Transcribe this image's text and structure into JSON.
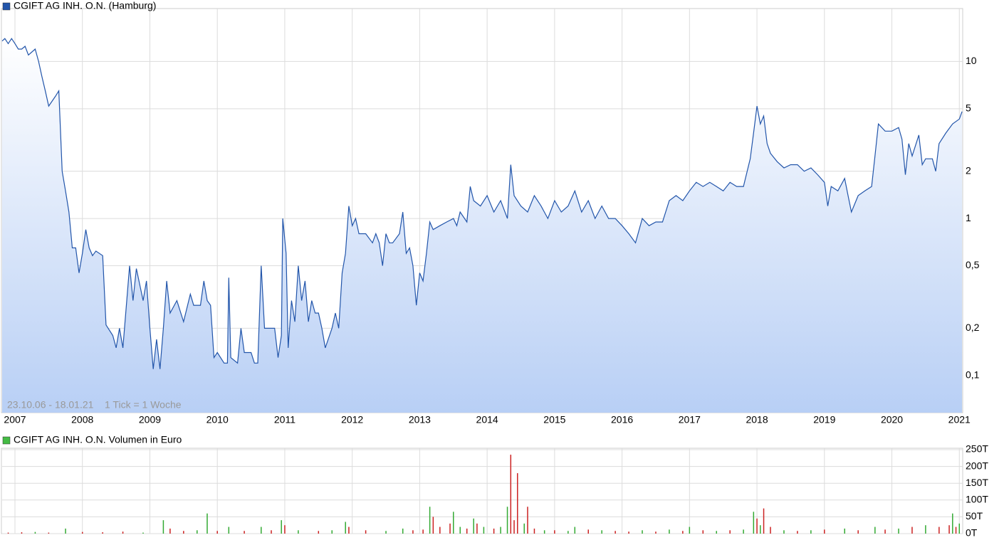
{
  "chart_data": [
    {
      "type": "line",
      "log_scale": true,
      "grid": true,
      "annotations": [
        "23.10.06 - 18.01.21",
        "1 Tick = 1 Woche"
      ],
      "x": [
        2006.81,
        2006.85,
        2006.9,
        2006.95,
        2007.0,
        2007.05,
        2007.1,
        2007.15,
        2007.2,
        2007.3,
        2007.35,
        2007.4,
        2007.45,
        2007.5,
        2007.6,
        2007.65,
        2007.7,
        2007.75,
        2007.8,
        2007.85,
        2007.9,
        2007.95,
        2008.0,
        2008.05,
        2008.1,
        2008.15,
        2008.2,
        2008.3,
        2008.35,
        2008.45,
        2008.5,
        2008.55,
        2008.6,
        2008.7,
        2008.75,
        2008.8,
        2008.9,
        2008.95,
        2009.0,
        2009.05,
        2009.1,
        2009.15,
        2009.2,
        2009.25,
        2009.3,
        2009.4,
        2009.5,
        2009.6,
        2009.65,
        2009.75,
        2009.8,
        2009.85,
        2009.9,
        2009.95,
        2010.0,
        2010.1,
        2010.15,
        2010.17,
        2010.2,
        2010.3,
        2010.35,
        2010.4,
        2010.5,
        2010.55,
        2010.6,
        2010.65,
        2010.7,
        2010.85,
        2010.9,
        2010.95,
        2010.97,
        2011.02,
        2011.05,
        2011.1,
        2011.15,
        2011.2,
        2011.25,
        2011.3,
        2011.35,
        2011.4,
        2011.45,
        2011.5,
        2011.55,
        2011.6,
        2011.7,
        2011.75,
        2011.8,
        2011.85,
        2011.9,
        2011.95,
        2012.0,
        2012.05,
        2012.1,
        2012.2,
        2012.3,
        2012.35,
        2012.4,
        2012.45,
        2012.5,
        2012.55,
        2012.6,
        2012.7,
        2012.75,
        2012.8,
        2012.85,
        2012.9,
        2012.95,
        2013.0,
        2013.05,
        2013.1,
        2013.15,
        2013.2,
        2013.3,
        2013.4,
        2013.5,
        2013.55,
        2013.6,
        2013.7,
        2013.75,
        2013.8,
        2013.9,
        2014.0,
        2014.1,
        2014.2,
        2014.3,
        2014.35,
        2014.4,
        2014.5,
        2014.6,
        2014.7,
        2014.8,
        2014.9,
        2015.0,
        2015.1,
        2015.2,
        2015.3,
        2015.4,
        2015.5,
        2015.6,
        2015.7,
        2015.8,
        2015.9,
        2016.0,
        2016.1,
        2016.2,
        2016.3,
        2016.4,
        2016.5,
        2016.6,
        2016.7,
        2016.8,
        2016.9,
        2017.0,
        2017.1,
        2017.2,
        2017.3,
        2017.4,
        2017.5,
        2017.6,
        2017.7,
        2017.8,
        2017.9,
        2017.95,
        2018.0,
        2018.05,
        2018.1,
        2018.15,
        2018.2,
        2018.3,
        2018.4,
        2018.5,
        2018.6,
        2018.7,
        2018.8,
        2018.9,
        2019.0,
        2019.05,
        2019.1,
        2019.2,
        2019.3,
        2019.35,
        2019.4,
        2019.5,
        2019.6,
        2019.7,
        2019.75,
        2019.8,
        2019.9,
        2020.0,
        2020.1,
        2020.15,
        2020.2,
        2020.25,
        2020.3,
        2020.4,
        2020.45,
        2020.5,
        2020.6,
        2020.65,
        2020.7,
        2020.8,
        2020.9,
        2021.0,
        2021.04
      ],
      "series": [
        {
          "name": "CGIFT AG INH. O.N. (Hamburg)",
          "color": "#2255aa",
          "values": [
            13.5,
            14,
            13,
            14,
            13,
            12,
            12,
            12.5,
            11,
            12,
            10,
            8,
            6.5,
            5.2,
            6,
            6.5,
            2,
            1.5,
            1.1,
            0.65,
            0.65,
            0.45,
            0.6,
            0.85,
            0.65,
            0.58,
            0.62,
            0.58,
            0.21,
            0.18,
            0.15,
            0.2,
            0.15,
            0.5,
            0.3,
            0.48,
            0.3,
            0.4,
            0.2,
            0.11,
            0.17,
            0.11,
            0.2,
            0.4,
            0.25,
            0.3,
            0.22,
            0.33,
            0.28,
            0.28,
            0.4,
            0.3,
            0.28,
            0.13,
            0.14,
            0.12,
            0.12,
            0.42,
            0.13,
            0.12,
            0.2,
            0.14,
            0.14,
            0.12,
            0.12,
            0.5,
            0.2,
            0.2,
            0.13,
            0.18,
            1.0,
            0.6,
            0.15,
            0.3,
            0.22,
            0.5,
            0.3,
            0.4,
            0.22,
            0.3,
            0.25,
            0.25,
            0.2,
            0.15,
            0.2,
            0.25,
            0.2,
            0.45,
            0.6,
            1.2,
            0.9,
            1.0,
            0.8,
            0.8,
            0.7,
            0.8,
            0.7,
            0.5,
            0.8,
            0.7,
            0.7,
            0.8,
            1.1,
            0.6,
            0.65,
            0.5,
            0.28,
            0.45,
            0.4,
            0.6,
            0.95,
            0.85,
            0.9,
            0.95,
            1.0,
            0.9,
            1.1,
            0.95,
            1.6,
            1.3,
            1.2,
            1.4,
            1.1,
            1.3,
            1.0,
            2.2,
            1.4,
            1.2,
            1.1,
            1.4,
            1.2,
            1.0,
            1.3,
            1.1,
            1.2,
            1.5,
            1.1,
            1.3,
            1.0,
            1.2,
            1.0,
            1.0,
            0.9,
            0.8,
            0.7,
            1.0,
            0.9,
            0.95,
            0.95,
            1.3,
            1.4,
            1.3,
            1.5,
            1.7,
            1.6,
            1.7,
            1.6,
            1.5,
            1.7,
            1.6,
            1.6,
            2.4,
            3.5,
            5.2,
            4.0,
            4.5,
            3.0,
            2.6,
            2.3,
            2.1,
            2.2,
            2.2,
            2.0,
            2.1,
            1.9,
            1.7,
            1.2,
            1.6,
            1.5,
            1.8,
            1.4,
            1.1,
            1.4,
            1.5,
            1.6,
            2.5,
            4.0,
            3.6,
            3.6,
            3.8,
            3.2,
            1.9,
            3.0,
            2.5,
            3.4,
            2.2,
            2.4,
            2.4,
            2.0,
            3.0,
            3.5,
            4.0,
            4.3,
            4.8
          ]
        }
      ],
      "xlim": [
        2006.81,
        2021.05
      ],
      "xticks": [
        2007,
        2008,
        2009,
        2010,
        2011,
        2012,
        2013,
        2014,
        2015,
        2016,
        2017,
        2018,
        2019,
        2020,
        2021
      ],
      "ylim": [
        0.058,
        20
      ],
      "yticks": [
        {
          "value": 0.1,
          "label": "0,1"
        },
        {
          "value": 0.2,
          "label": "0,2"
        },
        {
          "value": 0.5,
          "label": "0,5"
        },
        1,
        2,
        5,
        10
      ]
    },
    {
      "type": "bar",
      "grid": true,
      "x": [
        2006.9,
        2007.1,
        2007.3,
        2007.5,
        2007.75,
        2008.0,
        2008.3,
        2008.6,
        2008.9,
        2009.2,
        2009.3,
        2009.5,
        2009.7,
        2009.85,
        2010.0,
        2010.17,
        2010.4,
        2010.65,
        2010.8,
        2010.95,
        2011.0,
        2011.2,
        2011.5,
        2011.7,
        2011.9,
        2011.95,
        2012.2,
        2012.5,
        2012.75,
        2012.9,
        2013.05,
        2013.15,
        2013.2,
        2013.3,
        2013.45,
        2013.5,
        2013.6,
        2013.7,
        2013.8,
        2013.85,
        2013.95,
        2014.1,
        2014.2,
        2014.3,
        2014.35,
        2014.4,
        2014.45,
        2014.55,
        2014.6,
        2014.7,
        2014.85,
        2015.0,
        2015.2,
        2015.3,
        2015.5,
        2015.7,
        2015.9,
        2016.1,
        2016.3,
        2016.5,
        2016.7,
        2016.9,
        2017.0,
        2017.2,
        2017.4,
        2017.6,
        2017.8,
        2017.95,
        2018.0,
        2018.05,
        2018.1,
        2018.2,
        2018.4,
        2018.6,
        2018.8,
        2019.0,
        2019.3,
        2019.5,
        2019.75,
        2019.9,
        2020.1,
        2020.3,
        2020.5,
        2020.7,
        2020.85,
        2020.9,
        2020.95,
        2021.0
      ],
      "series": [
        {
          "name": "CGIFT AG INH. O.N. Volumen in Euro",
          "color": "#44bb44",
          "values": [
            3000,
            4000,
            5000,
            3000,
            15000,
            5000,
            4000,
            6000,
            3000,
            40000,
            15000,
            8000,
            10000,
            60000,
            8000,
            20000,
            8000,
            20000,
            10000,
            40000,
            25000,
            10000,
            8000,
            10000,
            35000,
            20000,
            10000,
            8000,
            15000,
            10000,
            12000,
            80000,
            50000,
            20000,
            30000,
            65000,
            20000,
            15000,
            45000,
            30000,
            20000,
            15000,
            20000,
            80000,
            235000,
            40000,
            180000,
            30000,
            80000,
            15000,
            10000,
            10000,
            8000,
            20000,
            12000,
            10000,
            8000,
            6000,
            10000,
            6000,
            12000,
            8000,
            20000,
            10000,
            8000,
            10000,
            12000,
            65000,
            45000,
            25000,
            75000,
            20000,
            10000,
            8000,
            10000,
            12000,
            15000,
            10000,
            20000,
            12000,
            15000,
            20000,
            25000,
            20000,
            25000,
            60000,
            20000,
            30000
          ],
          "bar_colors": [
            "#cc2222",
            "#cc2222",
            "#33aa33",
            "#cc2222",
            "#33aa33",
            "#cc2222",
            "#cc2222",
            "#cc2222",
            "#33aa33",
            "#33aa33",
            "#cc2222",
            "#cc2222",
            "#33aa33",
            "#33aa33",
            "#cc2222",
            "#33aa33",
            "#cc2222",
            "#33aa33",
            "#cc2222",
            "#33aa33",
            "#cc2222",
            "#33aa33",
            "#cc2222",
            "#33aa33",
            "#33aa33",
            "#cc2222",
            "#cc2222",
            "#33aa33",
            "#33aa33",
            "#cc2222",
            "#cc2222",
            "#33aa33",
            "#cc2222",
            "#cc2222",
            "#cc2222",
            "#33aa33",
            "#33aa33",
            "#cc2222",
            "#33aa33",
            "#cc2222",
            "#33aa33",
            "#cc2222",
            "#33aa33",
            "#33aa33",
            "#cc2222",
            "#cc2222",
            "#cc2222",
            "#33aa33",
            "#cc2222",
            "#cc2222",
            "#33aa33",
            "#cc2222",
            "#33aa33",
            "#33aa33",
            "#cc2222",
            "#33aa33",
            "#cc2222",
            "#cc2222",
            "#33aa33",
            "#cc2222",
            "#33aa33",
            "#cc2222",
            "#33aa33",
            "#cc2222",
            "#33aa33",
            "#cc2222",
            "#33aa33",
            "#33aa33",
            "#cc2222",
            "#33aa33",
            "#cc2222",
            "#cc2222",
            "#33aa33",
            "#cc2222",
            "#33aa33",
            "#cc2222",
            "#33aa33",
            "#cc2222",
            "#33aa33",
            "#cc2222",
            "#33aa33",
            "#cc2222",
            "#33aa33",
            "#cc2222",
            "#cc2222",
            "#33aa33",
            "#cc2222",
            "#33aa33"
          ]
        }
      ],
      "xlim": [
        2006.81,
        2021.05
      ],
      "xticks": [
        2007,
        2008,
        2009,
        2010,
        2011,
        2012,
        2013,
        2014,
        2015,
        2016,
        2017,
        2018,
        2019,
        2020,
        2021
      ],
      "ylim": [
        0,
        250000
      ],
      "yticks": [
        {
          "value": 0,
          "label": "0T"
        },
        {
          "value": 50000,
          "label": "50T"
        },
        {
          "value": 100000,
          "label": "100T"
        },
        {
          "value": 150000,
          "label": "150T"
        },
        {
          "value": 200000,
          "label": "200T"
        },
        {
          "value": 250000,
          "label": "250T"
        }
      ]
    }
  ]
}
